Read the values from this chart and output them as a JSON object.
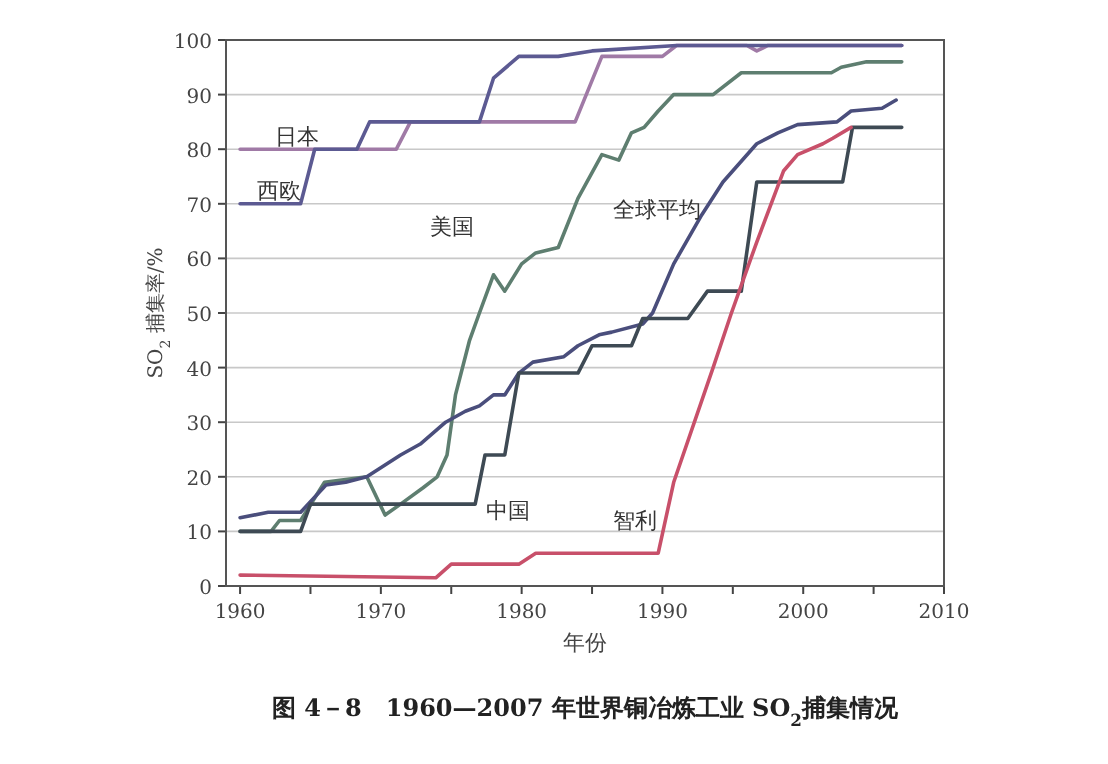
{
  "chart_data": {
    "type": "line",
    "title": "图 4－8　1960—2007 年世界铜冶炼工业 SO$_{2}$捕集情况",
    "xlabel": "年份",
    "ylabel": "SO$_{2}$ 捕集率/%",
    "xlim": [
      1959,
      2010
    ],
    "xticks": [
      1960,
      {
        "value": 1965,
        "label": null
      },
      1970,
      {
        "value": 1975,
        "label": null
      },
      1980,
      {
        "value": 1985,
        "label": null
      },
      1990,
      {
        "value": 1995,
        "label": null
      },
      2000,
      {
        "value": 2005,
        "label": null
      },
      2010
    ],
    "ylim": [
      0,
      100
    ],
    "yticks": [
      0,
      10,
      20,
      30,
      40,
      50,
      60,
      70,
      80,
      90,
      100
    ],
    "grid": "y",
    "legend": false,
    "marker": "none",
    "line_style": "solid",
    "series": [
      {
        "name": "日本",
        "color": "#a07aa6",
        "x": [
          1960,
          1971.1,
          1972.1,
          1983.8,
          1985.7,
          1990,
          1991,
          1996,
          1996.7,
          1997.5,
          2007
        ],
        "values": [
          80,
          80,
          85,
          85,
          97,
          97,
          99,
          99,
          98,
          99,
          99
        ]
      },
      {
        "name": "西欧",
        "color": "#5c5a92",
        "x": [
          1960,
          1964.3,
          1965.3,
          1968.3,
          1969.2,
          1977,
          1978,
          1979.8,
          1982.6,
          1985,
          1991,
          2007
        ],
        "values": [
          70,
          70,
          80,
          80,
          85,
          85,
          93,
          97,
          97,
          98,
          99,
          99
        ]
      },
      {
        "name": "美国",
        "color": "#5e7e70",
        "x": [
          1960,
          1962.2,
          1962.8,
          1964.3,
          1966,
          1969,
          1970.3,
          1971.4,
          1973,
          1974,
          1974.7,
          1975.3,
          1976.3,
          1977,
          1978,
          1978.8,
          1980,
          1981,
          1982.6,
          1984,
          1985.7,
          1986.9,
          1987.8,
          1988.7,
          1989.7,
          1990.8,
          1993.6,
          1995.6,
          2002,
          2002.7,
          2004.5,
          2007
        ],
        "values": [
          10,
          10,
          12,
          12,
          19,
          20,
          13,
          15,
          18,
          20,
          24,
          35,
          45,
          50,
          57,
          54,
          59,
          61,
          62,
          71,
          79,
          78,
          83,
          84,
          87,
          90,
          90,
          94,
          94,
          95,
          96,
          96
        ]
      },
      {
        "name": "全球平均",
        "color": "#4a4e7c",
        "x": [
          1960,
          1962,
          1964.3,
          1966.1,
          1967.5,
          1969,
          1971.4,
          1972.8,
          1974.6,
          1976,
          1977,
          1978,
          1978.8,
          1979.8,
          1980.8,
          1983,
          1984,
          1985.5,
          1986.4,
          1988.6,
          1989.3,
          1990.8,
          1992.8,
          1994.3,
          1996.7,
          1998.2,
          1999.6,
          2002.4,
          2003.4,
          2005.6,
          2006.6
        ],
        "values": [
          12.5,
          13.5,
          13.5,
          18.5,
          19,
          20,
          24,
          26,
          30,
          32,
          33,
          35,
          35,
          39,
          41,
          42,
          44,
          46,
          46.5,
          48,
          50,
          59,
          68,
          74,
          81,
          83,
          84.5,
          85,
          87,
          87.5,
          89
        ]
      },
      {
        "name": "中国",
        "color": "#3e4a54",
        "x": [
          1960,
          1964.3,
          1965,
          1976.7,
          1977.4,
          1978.8,
          1979.8,
          1984,
          1985,
          1987.8,
          1988.6,
          1991.8,
          1993.2,
          1995.6,
          1996.7,
          2002.8,
          2003.5,
          2007
        ],
        "values": [
          10,
          10,
          15,
          15,
          24,
          24,
          39,
          39,
          44,
          44,
          49,
          49,
          54,
          54,
          74,
          74,
          84,
          84
        ]
      },
      {
        "name": "智利",
        "color": "#c8506a",
        "x": [
          1960,
          1973.9,
          1975,
          1979.8,
          1981,
          1989.7,
          1990.8,
          1993.6,
          1994.9,
          1996.7,
          1998.6,
          1999.6,
          2001.4,
          2002.1,
          2003.4
        ],
        "values": [
          2,
          1.5,
          4,
          4,
          6,
          6,
          19,
          40,
          50,
          63,
          76,
          79,
          81,
          82,
          84
        ]
      }
    ]
  }
}
